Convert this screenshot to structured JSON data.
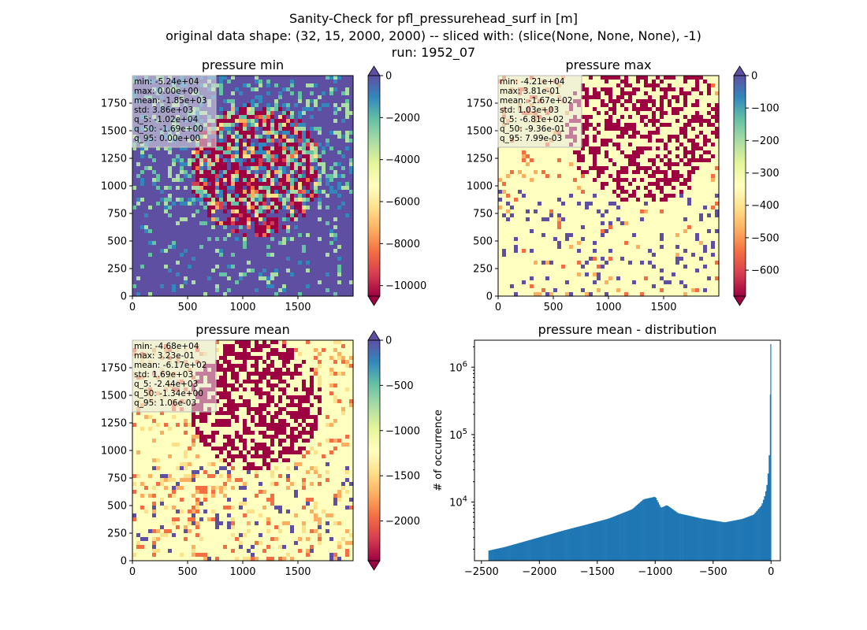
{
  "suptitle": {
    "line1": "Sanity-Check for pfl_pressurehead_surf in [m]",
    "line2": "original data shape: (32, 15, 2000, 2000) -- sliced with: (slice(None, None, None), -1)",
    "line3": "run: 1952_07"
  },
  "colors": {
    "spectral": [
      "#9e0142",
      "#d53e4f",
      "#f46d43",
      "#fdae61",
      "#fee08b",
      "#ffffbf",
      "#e6f598",
      "#abdda4",
      "#66c2a5",
      "#3288bd",
      "#5e4fa2"
    ],
    "hist": "#1f77b4"
  },
  "chart_data": [
    {
      "type": "heatmap",
      "title": "pressure min",
      "xlim": [
        0,
        2000
      ],
      "ylim": [
        0,
        2000
      ],
      "xticks": [
        "0",
        "500",
        "1000",
        "1500"
      ],
      "yticks": [
        "0",
        "250",
        "500",
        "750",
        "1000",
        "1250",
        "1500",
        "1750"
      ],
      "colorbar": {
        "min": -10500,
        "max": 0,
        "ticks": [
          "0",
          "−2000",
          "−4000",
          "−6000",
          "−8000",
          "−10000"
        ],
        "extend_min": true,
        "extend_max": true
      },
      "stats": [
        "min: -5.24e+04",
        "max: 0.00e+00",
        "mean: -1.85e+03",
        "std: 3.86e+03",
        "q_5: -1.02e+04",
        "q_50: -1.69e+00",
        "q_95: 0.00e+00"
      ]
    },
    {
      "type": "heatmap",
      "title": "pressure max",
      "xlim": [
        0,
        2000
      ],
      "ylim": [
        0,
        2000
      ],
      "xticks": [
        "0",
        "500",
        "1000",
        "1500"
      ],
      "yticks": [
        "0",
        "250",
        "500",
        "750",
        "1000",
        "1250",
        "1500",
        "1750"
      ],
      "colorbar": {
        "min": -680,
        "max": 0,
        "ticks": [
          "0",
          "−100",
          "−200",
          "−300",
          "−400",
          "−500",
          "−600"
        ],
        "extend_min": true,
        "extend_max": true
      },
      "stats": [
        "min: -4.21e+04",
        "max: 3.81e-01",
        "mean: -1.67e+02",
        "std: 1.03e+03",
        "q_5: -6.81e+02",
        "q_50: -9.36e-01",
        "q_95: 7.99e-03"
      ]
    },
    {
      "type": "heatmap",
      "title": "pressure mean",
      "xlim": [
        0,
        2000
      ],
      "ylim": [
        0,
        2000
      ],
      "xticks": [
        "0",
        "500",
        "1000",
        "1500"
      ],
      "yticks": [
        "0",
        "250",
        "500",
        "750",
        "1000",
        "1250",
        "1500",
        "1750"
      ],
      "colorbar": {
        "min": -2440,
        "max": 0,
        "ticks": [
          "0",
          "−500",
          "−1000",
          "−1500",
          "−2000"
        ],
        "extend_min": true,
        "extend_max": true
      },
      "stats": [
        "min: -4.68e+04",
        "max: 3.23e-01",
        "mean: -6.17e+02",
        "std: 1.69e+03",
        "q_5: -2.44e+03",
        "q_50: -1.34e+00",
        "q_95: 1.06e-03"
      ]
    },
    {
      "type": "bar",
      "title": "pressure mean - distribution",
      "ylabel": "# of occurrence",
      "xlabel": "",
      "yscale": "log",
      "xlim": [
        -2560,
        80
      ],
      "ylim_log10": [
        3.13,
        6.4
      ],
      "xticks": [
        {
          "value": -2500,
          "label": "−2500"
        },
        {
          "value": -2000,
          "label": "−2000"
        },
        {
          "value": -1500,
          "label": "−1500"
        },
        {
          "value": -1000,
          "label": "−1000"
        },
        {
          "value": -500,
          "label": "−500"
        },
        {
          "value": 0,
          "label": "0"
        }
      ],
      "yticks": [
        {
          "value": 10000,
          "base": "10",
          "exp": "4"
        },
        {
          "value": 100000,
          "base": "10",
          "exp": "5"
        },
        {
          "value": 1000000,
          "base": "10",
          "exp": "6"
        }
      ],
      "histogram": {
        "x": [
          -2440,
          -2300,
          -2200,
          -2000,
          -1800,
          -1600,
          -1400,
          -1200,
          -1100,
          -1000,
          -950,
          -900,
          -800,
          -600,
          -400,
          -250,
          -150,
          -80,
          -50,
          -30,
          -20,
          -10,
          0
        ],
        "counts": [
          1900,
          2150,
          2400,
          3000,
          3750,
          4600,
          5700,
          7800,
          11000,
          12000,
          8200,
          9000,
          6800,
          5700,
          5000,
          5600,
          6500,
          9000,
          13000,
          20000,
          35000,
          70000,
          2200000
        ]
      }
    }
  ]
}
